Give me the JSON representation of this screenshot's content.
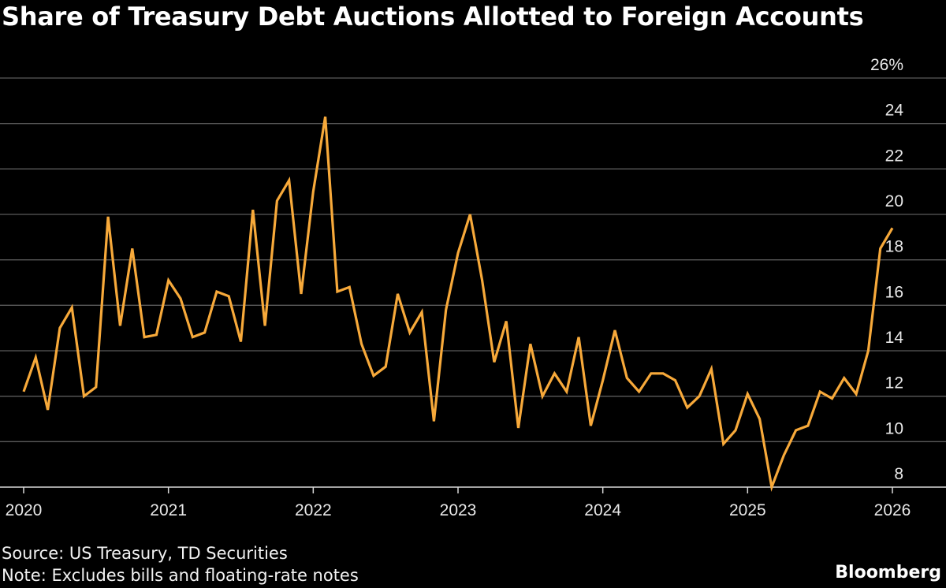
{
  "title": "Share of Treasury Debt Auctions Allotted to Foreign Accounts",
  "source": "Source: US Treasury, TD Securities",
  "note": "Note: Excludes bills and floating-rate notes",
  "brand": "Bloomberg",
  "colors": {
    "line": "#f7a93a",
    "grid": "#5a5a5a",
    "background": "#000000",
    "text": "#ffffff"
  },
  "chart_data": {
    "type": "line",
    "title": "Share of Treasury Debt Auctions Allotted to Foreign Accounts",
    "xlabel": "",
    "ylabel": "",
    "y_unit": "%",
    "xlim": [
      "2020-01",
      "2026-01"
    ],
    "ylim": [
      8,
      26
    ],
    "y_ticks": [
      8,
      10,
      12,
      14,
      16,
      18,
      20,
      22,
      24,
      26
    ],
    "y_tick_labels": [
      "8",
      "10",
      "12",
      "14",
      "16",
      "18",
      "20",
      "22",
      "24",
      "26%"
    ],
    "x_ticks": [
      "2020-01",
      "2021-01",
      "2022-01",
      "2023-01",
      "2024-01",
      "2025-01",
      "2026-01"
    ],
    "x_tick_labels": [
      "2020",
      "2021",
      "2022",
      "2023",
      "2024",
      "2025",
      "2026"
    ],
    "grid": true,
    "series": [
      {
        "x": [
          "2020-01",
          "2020-02",
          "2020-03",
          "2020-04",
          "2020-05",
          "2020-06",
          "2020-07",
          "2020-08",
          "2020-09",
          "2020-10",
          "2020-11",
          "2020-12",
          "2021-01",
          "2021-02",
          "2021-03",
          "2021-04",
          "2021-05",
          "2021-06",
          "2021-07",
          "2021-08",
          "2021-09",
          "2021-10",
          "2021-11",
          "2021-12",
          "2022-01",
          "2022-02",
          "2022-03",
          "2022-04",
          "2022-05",
          "2022-06",
          "2022-07",
          "2022-08",
          "2022-09",
          "2022-10",
          "2022-11",
          "2022-12",
          "2023-01",
          "2023-02",
          "2023-03",
          "2023-04",
          "2023-05",
          "2023-06",
          "2023-07",
          "2023-08",
          "2023-09",
          "2023-10",
          "2023-11",
          "2023-12",
          "2024-01",
          "2024-02",
          "2024-03",
          "2024-04",
          "2024-05",
          "2024-06",
          "2024-07",
          "2024-08",
          "2024-09",
          "2024-10",
          "2024-11",
          "2024-12",
          "2025-01",
          "2025-02",
          "2025-03",
          "2025-04",
          "2025-05",
          "2025-06",
          "2025-07",
          "2025-08",
          "2025-09",
          "2025-10",
          "2025-11",
          "2025-12",
          "2026-01"
        ],
        "values": [
          12.2,
          13.7,
          11.4,
          15.0,
          15.9,
          12.0,
          12.4,
          19.9,
          15.1,
          18.5,
          14.6,
          14.7,
          17.1,
          16.3,
          14.6,
          14.8,
          16.6,
          16.4,
          14.4,
          20.2,
          15.1,
          20.6,
          21.5,
          16.5,
          21.0,
          24.3,
          16.6,
          16.8,
          14.3,
          12.9,
          13.3,
          16.5,
          14.8,
          15.7,
          10.9,
          15.8,
          18.3,
          20.0,
          17.1,
          13.5,
          15.3,
          10.6,
          14.3,
          12.0,
          13.0,
          12.2,
          14.6,
          10.7,
          12.7,
          14.9,
          12.8,
          12.2,
          13.0,
          13.0,
          12.7,
          11.5,
          12.0,
          13.2,
          9.9,
          10.5,
          12.1,
          11.0,
          8.0,
          9.4,
          10.5,
          10.7,
          12.2,
          11.9,
          12.8,
          12.1,
          14.0,
          18.5,
          19.4
        ]
      }
    ]
  }
}
